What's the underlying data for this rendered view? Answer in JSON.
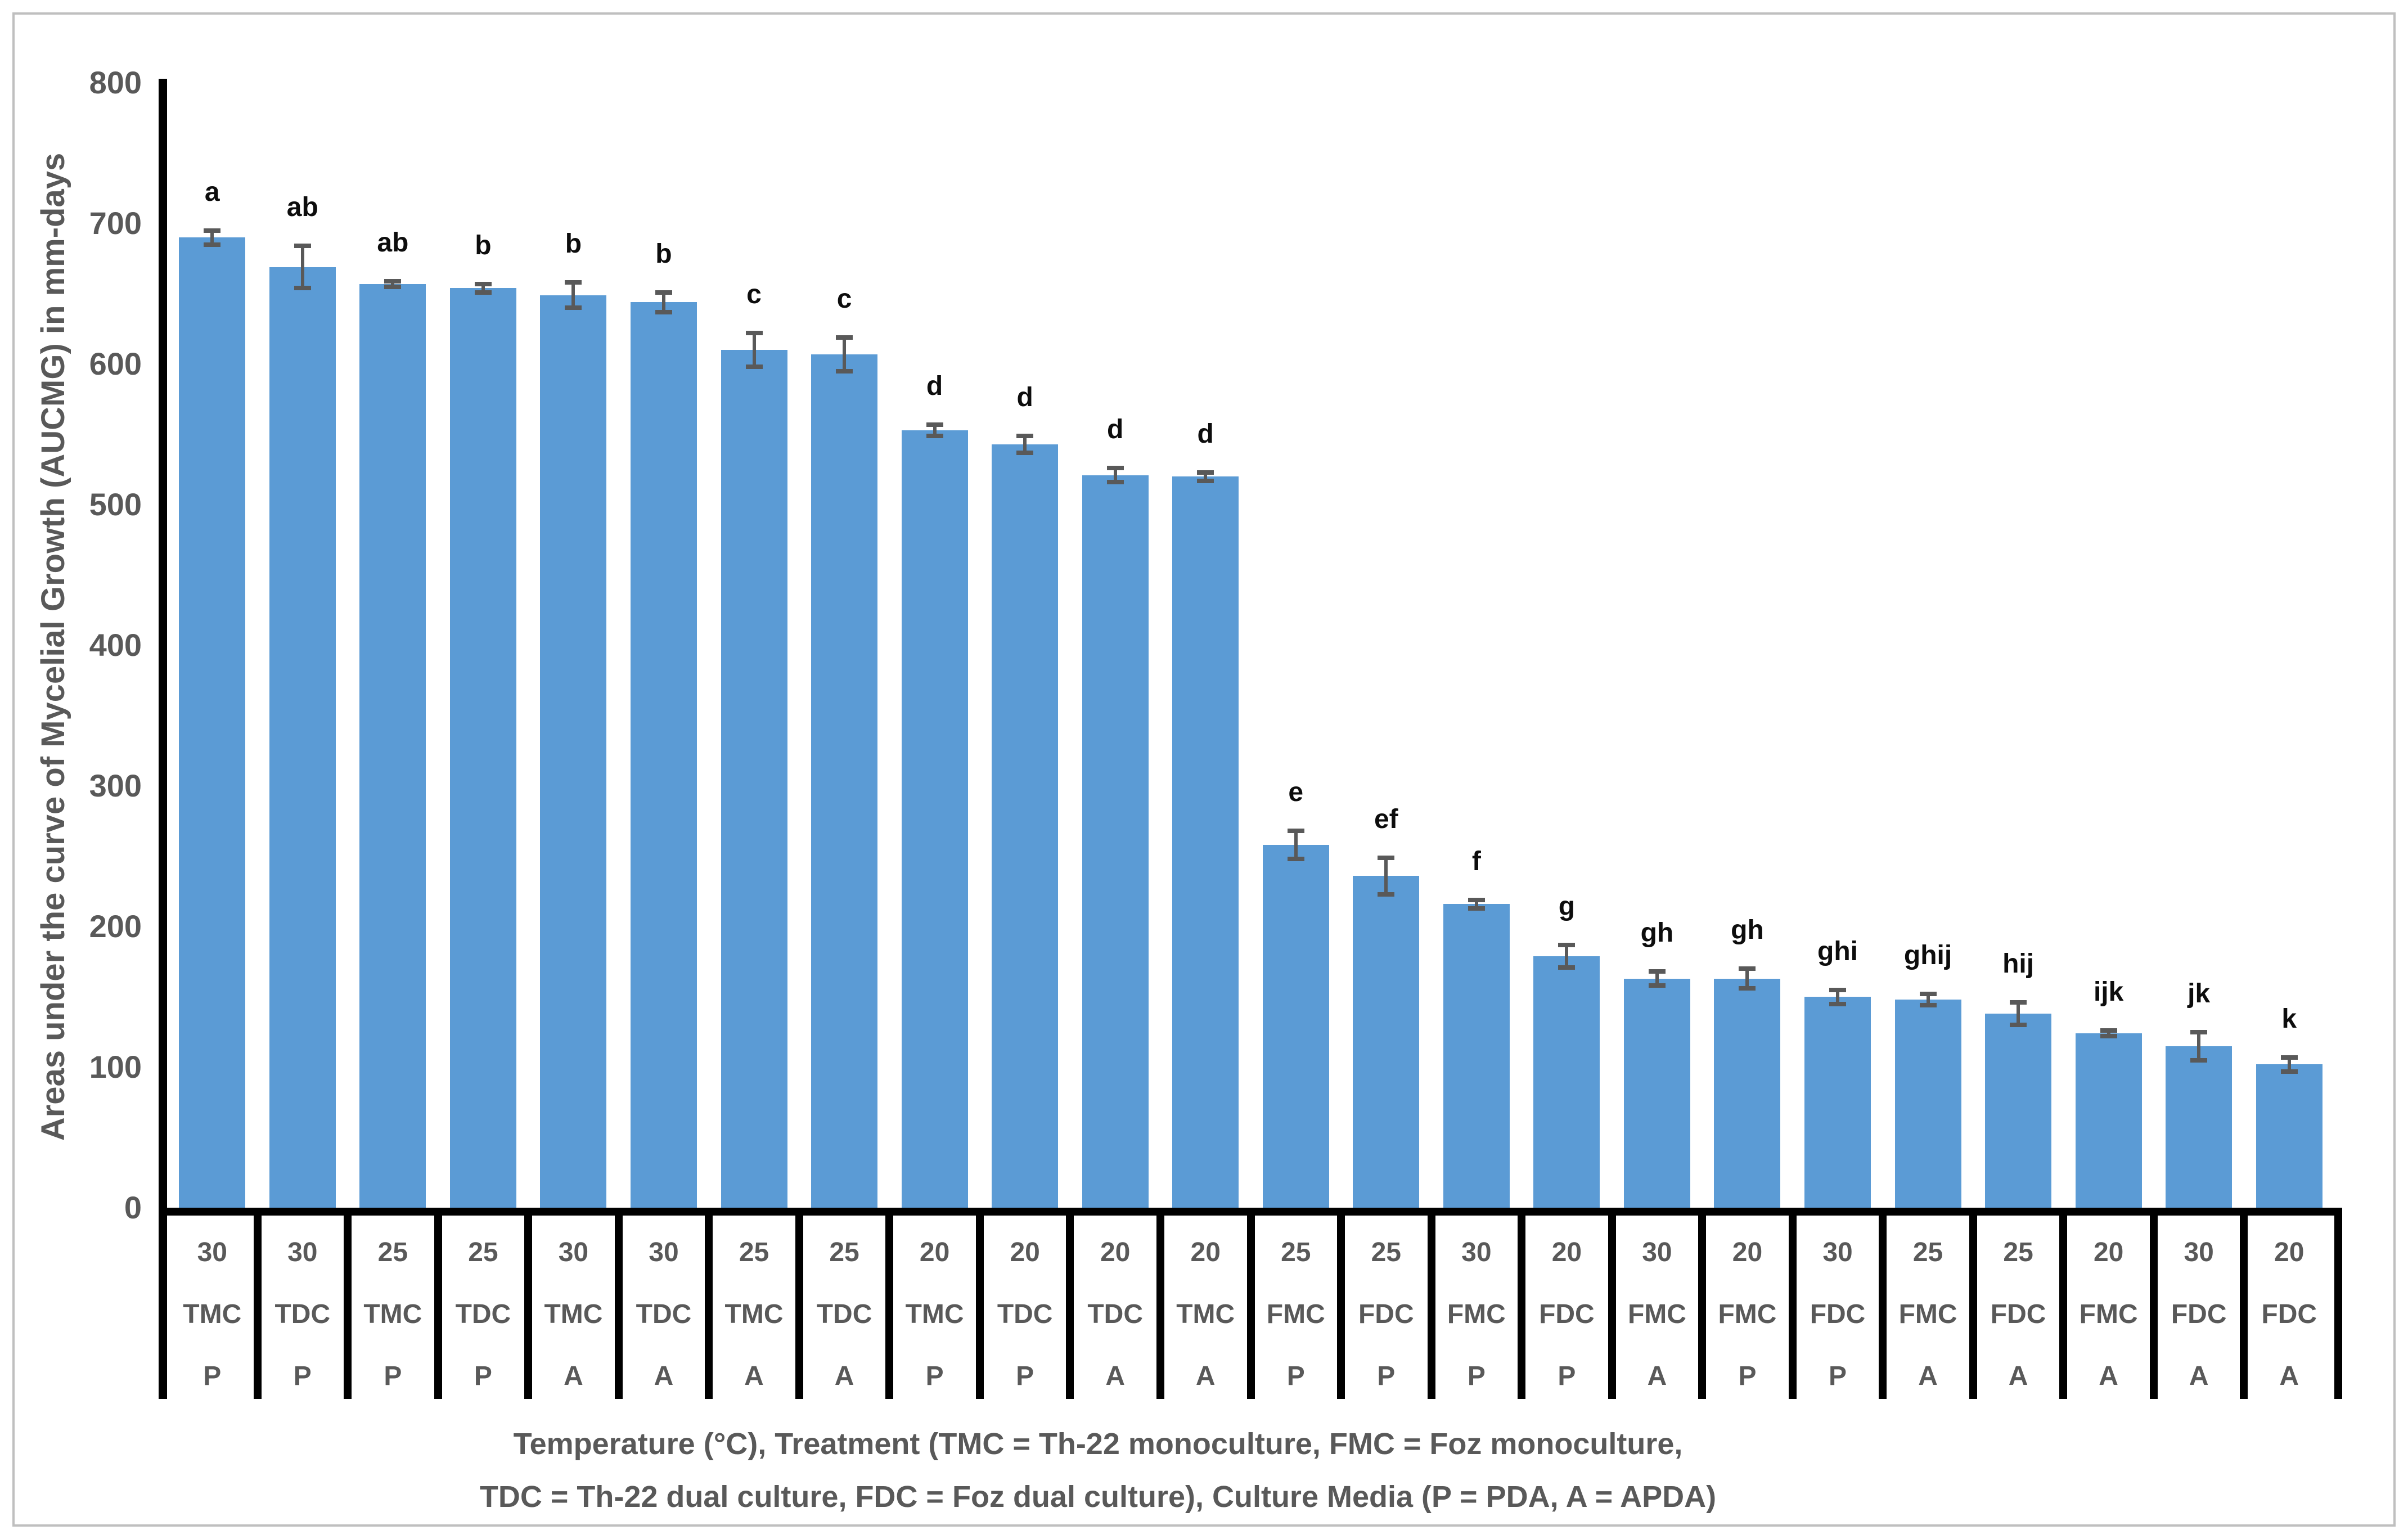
{
  "chart_data": {
    "type": "bar",
    "title": "",
    "y_axis_title": "Areas under the curve of Mycelial Growth (AUCMG) in mm-days",
    "x_axis_title_line1": "Temperature (°C), Treatment (TMC = Th-22 monoculture, FMC = Foz monoculture,",
    "x_axis_title_line2": "TDC = Th-22 dual culture, FDC = Foz dual culture), Culture Media (P = PDA, A = APDA)",
    "ylim": [
      0,
      800
    ],
    "y_tick_labels": [
      "800",
      "700",
      "600",
      "500",
      "400",
      "300",
      "200",
      "100",
      "0"
    ],
    "y_tick_values": [
      800,
      700,
      600,
      500,
      400,
      300,
      200,
      100,
      0
    ],
    "grid": false,
    "legend": null,
    "colors": {
      "bar_fill": "#5b9bd5",
      "error_bar": "#595959",
      "axis_line": "#000000",
      "tick_text": "#595959",
      "letter_text": "#0d0d0d",
      "frame_border": "#bfbfbf",
      "background": "#ffffff"
    },
    "x_levels": [
      "temperature",
      "treatment",
      "media"
    ],
    "bars": [
      {
        "temperature": "30",
        "treatment": "TMC",
        "media": "P",
        "value": 690,
        "error": 5,
        "letter": "a"
      },
      {
        "temperature": "30",
        "treatment": "TDC",
        "media": "P",
        "value": 669,
        "error": 15,
        "letter": "ab"
      },
      {
        "temperature": "25",
        "treatment": "TMC",
        "media": "P",
        "value": 657,
        "error": 2,
        "letter": "ab"
      },
      {
        "temperature": "25",
        "treatment": "TDC",
        "media": "P",
        "value": 654,
        "error": 3,
        "letter": "b"
      },
      {
        "temperature": "30",
        "treatment": "TMC",
        "media": "A",
        "value": 649,
        "error": 9,
        "letter": "b"
      },
      {
        "temperature": "30",
        "treatment": "TDC",
        "media": "A",
        "value": 644,
        "error": 7,
        "letter": "b"
      },
      {
        "temperature": "25",
        "treatment": "TMC",
        "media": "A",
        "value": 610,
        "error": 12,
        "letter": "c"
      },
      {
        "temperature": "25",
        "treatment": "TDC",
        "media": "A",
        "value": 607,
        "error": 12,
        "letter": "c"
      },
      {
        "temperature": "20",
        "treatment": "TMC",
        "media": "P",
        "value": 553,
        "error": 4,
        "letter": "d"
      },
      {
        "temperature": "20",
        "treatment": "TDC",
        "media": "P",
        "value": 543,
        "error": 6,
        "letter": "d"
      },
      {
        "temperature": "20",
        "treatment": "TDC",
        "media": "A",
        "value": 521,
        "error": 5,
        "letter": "d"
      },
      {
        "temperature": "20",
        "treatment": "TMC",
        "media": "A",
        "value": 520,
        "error": 3,
        "letter": "d"
      },
      {
        "temperature": "25",
        "treatment": "FMC",
        "media": "P",
        "value": 258,
        "error": 10,
        "letter": "e"
      },
      {
        "temperature": "25",
        "treatment": "FDC",
        "media": "P",
        "value": 236,
        "error": 13,
        "letter": "ef"
      },
      {
        "temperature": "30",
        "treatment": "FMC",
        "media": "P",
        "value": 216,
        "error": 3,
        "letter": "f"
      },
      {
        "temperature": "20",
        "treatment": "FDC",
        "media": "P",
        "value": 179,
        "error": 8,
        "letter": "g"
      },
      {
        "temperature": "30",
        "treatment": "FMC",
        "media": "A",
        "value": 163,
        "error": 5,
        "letter": "gh"
      },
      {
        "temperature": "20",
        "treatment": "FMC",
        "media": "P",
        "value": 163,
        "error": 7,
        "letter": "gh"
      },
      {
        "temperature": "30",
        "treatment": "FDC",
        "media": "P",
        "value": 150,
        "error": 5,
        "letter": "ghi"
      },
      {
        "temperature": "25",
        "treatment": "FMC",
        "media": "A",
        "value": 148,
        "error": 4,
        "letter": "ghij"
      },
      {
        "temperature": "25",
        "treatment": "FDC",
        "media": "A",
        "value": 138,
        "error": 8,
        "letter": "hij"
      },
      {
        "temperature": "20",
        "treatment": "FMC",
        "media": "A",
        "value": 124,
        "error": 2,
        "letter": "ijk"
      },
      {
        "temperature": "30",
        "treatment": "FDC",
        "media": "A",
        "value": 115,
        "error": 10,
        "letter": "jk"
      },
      {
        "temperature": "20",
        "treatment": "FDC",
        "media": "A",
        "value": 102,
        "error": 5,
        "letter": "k"
      }
    ]
  }
}
